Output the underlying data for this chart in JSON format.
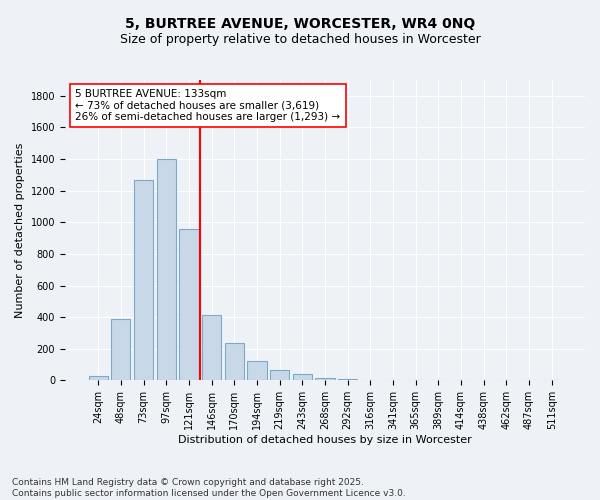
{
  "title": "5, BURTREE AVENUE, WORCESTER, WR4 0NQ",
  "subtitle": "Size of property relative to detached houses in Worcester",
  "xlabel": "Distribution of detached houses by size in Worcester",
  "ylabel": "Number of detached properties",
  "bar_labels": [
    "24sqm",
    "48sqm",
    "73sqm",
    "97sqm",
    "121sqm",
    "146sqm",
    "170sqm",
    "194sqm",
    "219sqm",
    "243sqm",
    "268sqm",
    "292sqm",
    "316sqm",
    "341sqm",
    "365sqm",
    "389sqm",
    "414sqm",
    "438sqm",
    "462sqm",
    "487sqm",
    "511sqm"
  ],
  "bar_values": [
    25,
    390,
    1265,
    1400,
    960,
    415,
    235,
    120,
    68,
    42,
    15,
    10,
    5,
    3,
    0,
    2,
    0,
    0,
    0,
    0,
    0
  ],
  "bar_color": "#c8d8e8",
  "bar_edge_color": "#7aaac8",
  "vline_color": "red",
  "annotation_text_line1": "5 BURTREE AVENUE: 133sqm",
  "annotation_text_line2": "← 73% of detached houses are smaller (3,619)",
  "annotation_text_line3": "26% of semi-detached houses are larger (1,293) →",
  "ylim": [
    0,
    1900
  ],
  "yticks": [
    0,
    200,
    400,
    600,
    800,
    1000,
    1200,
    1400,
    1600,
    1800
  ],
  "background_color": "#eef2f7",
  "plot_bg_color": "#eef2f7",
  "footer_line1": "Contains HM Land Registry data © Crown copyright and database right 2025.",
  "footer_line2": "Contains public sector information licensed under the Open Government Licence v3.0.",
  "title_fontsize": 10,
  "subtitle_fontsize": 9,
  "tick_fontsize": 7,
  "ylabel_fontsize": 8,
  "xlabel_fontsize": 8,
  "annotation_fontsize": 7.5,
  "footer_fontsize": 6.5
}
